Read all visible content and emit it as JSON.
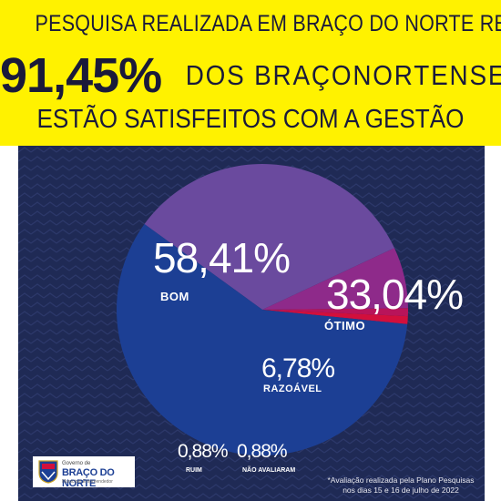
{
  "header": {
    "line1": "PESQUISA REALIZADA EM BRAÇO DO NORTE REVELA:",
    "highlight_value": "91,45%",
    "line2_rest": "DOS BRAÇONORTENSES",
    "line3": "ESTÃO SATISFEITOS COM A GESTÃO"
  },
  "chart_data": {
    "type": "pie",
    "title": "",
    "slices": [
      {
        "label": "BOM",
        "value": 58.41,
        "display": "58,41%",
        "color": "#1c3f94"
      },
      {
        "label": "ÓTIMO",
        "value": 33.04,
        "display": "33,04%",
        "color": "#6a4a9e"
      },
      {
        "label": "RAZOÁVEL",
        "value": 6.78,
        "display": "6,78%",
        "color": "#8e2a8a"
      },
      {
        "label": "NÃO AVALIARAM",
        "value": 0.88,
        "display": "0,88%",
        "color": "#b8145a"
      },
      {
        "label": "RUIM",
        "value": 0.88,
        "display": "0,88%",
        "color": "#d20f3c"
      }
    ]
  },
  "logo": {
    "gov_text": "Governo de",
    "name": "BRAÇO DO NORTE",
    "sub_text": "Município Empreendedor"
  },
  "footnote": {
    "line1": "*Avaliação realizada pela Plano Pesquisas",
    "line2": "nos dias 15 e 16 de julho de 2022"
  },
  "colors": {
    "banner": "#fff200",
    "panel": "#1f2a55",
    "headline_text": "#1a1a3a"
  }
}
